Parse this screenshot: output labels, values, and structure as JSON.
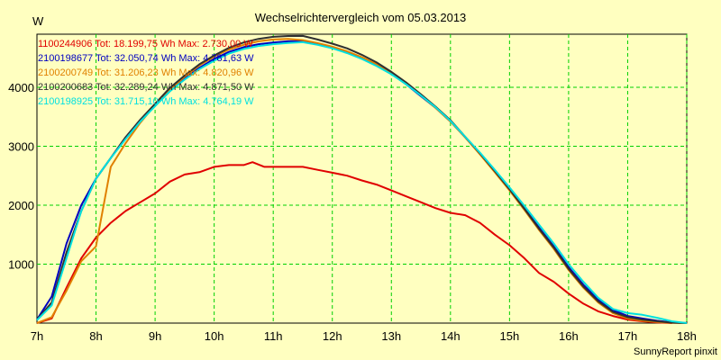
{
  "chart_data": {
    "type": "line",
    "title": "Wechselrichtervergleich vom 05.03.2013",
    "ylabel": "W",
    "xlabel": "",
    "x_ticks": [
      "7h",
      "8h",
      "9h",
      "10h",
      "11h",
      "12h",
      "13h",
      "14h",
      "15h",
      "16h",
      "17h",
      "18h"
    ],
    "y_ticks": [
      1000,
      2000,
      3000,
      4000
    ],
    "xlim": [
      7,
      18
    ],
    "ylim": [
      0,
      4900
    ],
    "grid": true,
    "legend_position": "top-left",
    "footer": "SunnyReport pinxit",
    "series": [
      {
        "name": "1100244906",
        "legend_text": "1100244906 Tot: 18.199,75 Wh Max: 2.730,00 W",
        "color": "#e00000",
        "x": [
          7.0,
          7.25,
          7.5,
          7.75,
          8.0,
          8.25,
          8.5,
          8.75,
          9.0,
          9.25,
          9.5,
          9.75,
          10.0,
          10.25,
          10.5,
          10.65,
          10.85,
          11.25,
          11.5,
          11.75,
          12.0,
          12.25,
          12.5,
          12.75,
          13.0,
          13.25,
          13.5,
          13.75,
          14.0,
          14.25,
          14.5,
          14.75,
          15.0,
          15.25,
          15.5,
          15.75,
          16.0,
          16.25,
          16.5,
          16.75,
          17.0,
          17.25,
          17.5,
          17.75
        ],
        "y": [
          0,
          80,
          600,
          1100,
          1450,
          1700,
          1900,
          2050,
          2200,
          2400,
          2520,
          2560,
          2650,
          2680,
          2680,
          2730,
          2650,
          2650,
          2650,
          2600,
          2550,
          2500,
          2420,
          2350,
          2250,
          2150,
          2050,
          1950,
          1870,
          1830,
          1700,
          1500,
          1320,
          1100,
          850,
          700,
          500,
          330,
          200,
          120,
          60,
          30,
          10,
          0
        ]
      },
      {
        "name": "2100198677",
        "legend_text": "2100198677 Tot: 32.050,74 Wh Max: 4.781,63 W",
        "color": "#0000c0",
        "x": [
          7.0,
          7.25,
          7.5,
          7.75,
          8.0,
          8.25,
          8.5,
          8.75,
          9.0,
          9.25,
          9.5,
          9.75,
          10.0,
          10.25,
          10.5,
          10.75,
          11.0,
          11.25,
          11.5,
          11.75,
          12.0,
          12.25,
          12.5,
          12.75,
          13.0,
          13.25,
          13.5,
          13.75,
          14.0,
          14.25,
          14.5,
          14.75,
          15.0,
          15.25,
          15.5,
          15.75,
          16.0,
          16.25,
          16.5,
          16.75,
          17.0,
          17.25,
          17.5,
          17.75,
          18.0
        ],
        "y": [
          60,
          450,
          1350,
          2000,
          2450,
          2800,
          3150,
          3450,
          3700,
          3950,
          4150,
          4330,
          4480,
          4600,
          4680,
          4730,
          4760,
          4780,
          4782,
          4740,
          4680,
          4600,
          4500,
          4380,
          4230,
          4050,
          3850,
          3650,
          3420,
          3150,
          2870,
          2580,
          2280,
          1950,
          1620,
          1300,
          950,
          650,
          400,
          220,
          120,
          80,
          40,
          10,
          0
        ]
      },
      {
        "name": "2100200749",
        "legend_text": "2100200749 Tot: 31.206,23 Wh Max: 4.820,96 W",
        "color": "#e08000",
        "x": [
          7.0,
          7.25,
          7.5,
          7.75,
          8.0,
          8.25,
          8.5,
          8.75,
          9.0,
          9.25,
          9.5,
          9.75,
          10.0,
          10.25,
          10.5,
          10.75,
          11.0,
          11.25,
          11.5,
          11.75,
          12.0,
          12.25,
          12.5,
          12.75,
          13.0,
          13.25,
          13.5,
          13.75,
          14.0,
          14.25,
          14.5,
          14.75,
          15.0,
          15.25,
          15.5,
          15.75,
          16.0,
          16.25,
          16.5,
          16.75,
          17.0,
          17.25,
          17.5,
          17.75,
          18.0
        ],
        "y": [
          0,
          100,
          550,
          1050,
          1300,
          2650,
          3050,
          3400,
          3700,
          3960,
          4180,
          4370,
          4520,
          4640,
          4720,
          4780,
          4810,
          4821,
          4800,
          4750,
          4690,
          4610,
          4510,
          4390,
          4240,
          4060,
          3860,
          3650,
          3420,
          3150,
          2860,
          2560,
          2250,
          1920,
          1580,
          1260,
          900,
          600,
          350,
          170,
          80,
          40,
          20,
          5,
          0
        ]
      },
      {
        "name": "2100200683",
        "legend_text": "2100200683 Tot: 32.289,24 Wh Max: 4.871,50 W",
        "color": "#303030",
        "x": [
          7.0,
          7.25,
          7.5,
          7.75,
          8.0,
          8.25,
          8.5,
          8.75,
          9.0,
          9.25,
          9.5,
          9.75,
          10.0,
          10.25,
          10.5,
          10.75,
          11.0,
          11.25,
          11.5,
          11.75,
          12.0,
          12.25,
          12.5,
          12.75,
          13.0,
          13.25,
          13.5,
          13.75,
          14.0,
          14.25,
          14.5,
          14.75,
          15.0,
          15.25,
          15.5,
          15.75,
          16.0,
          16.25,
          16.5,
          16.75,
          17.0,
          17.25,
          17.5,
          17.75,
          18.0
        ],
        "y": [
          60,
          350,
          1200,
          1900,
          2450,
          2800,
          3150,
          3450,
          3720,
          3990,
          4200,
          4390,
          4540,
          4670,
          4760,
          4820,
          4855,
          4870,
          4871,
          4810,
          4740,
          4660,
          4550,
          4420,
          4260,
          4080,
          3880,
          3670,
          3440,
          3160,
          2880,
          2580,
          2270,
          1940,
          1600,
          1280,
          920,
          620,
          370,
          190,
          100,
          60,
          30,
          8,
          0
        ]
      },
      {
        "name": "2100198925",
        "legend_text": "2100198925 Tot: 31.715,10 Wh Max: 4.764,19 W",
        "color": "#00e0e0",
        "x": [
          7.0,
          7.25,
          7.5,
          7.75,
          8.0,
          8.25,
          8.5,
          8.75,
          9.0,
          9.25,
          9.5,
          9.75,
          10.0,
          10.25,
          10.5,
          10.75,
          11.0,
          11.25,
          11.5,
          11.75,
          12.0,
          12.25,
          12.5,
          12.75,
          13.0,
          13.25,
          13.5,
          13.75,
          14.0,
          14.25,
          14.5,
          14.75,
          15.0,
          15.25,
          15.5,
          15.75,
          16.0,
          16.25,
          16.5,
          16.75,
          17.0,
          17.25,
          17.5,
          17.75,
          18.0
        ],
        "y": [
          50,
          300,
          1100,
          1900,
          2450,
          2800,
          3120,
          3420,
          3680,
          3930,
          4130,
          4310,
          4450,
          4570,
          4650,
          4700,
          4730,
          4750,
          4764,
          4720,
          4660,
          4580,
          4480,
          4360,
          4220,
          4050,
          3860,
          3660,
          3430,
          3160,
          2890,
          2600,
          2300,
          1990,
          1670,
          1350,
          1000,
          700,
          430,
          240,
          170,
          140,
          90,
          30,
          0
        ]
      }
    ]
  }
}
